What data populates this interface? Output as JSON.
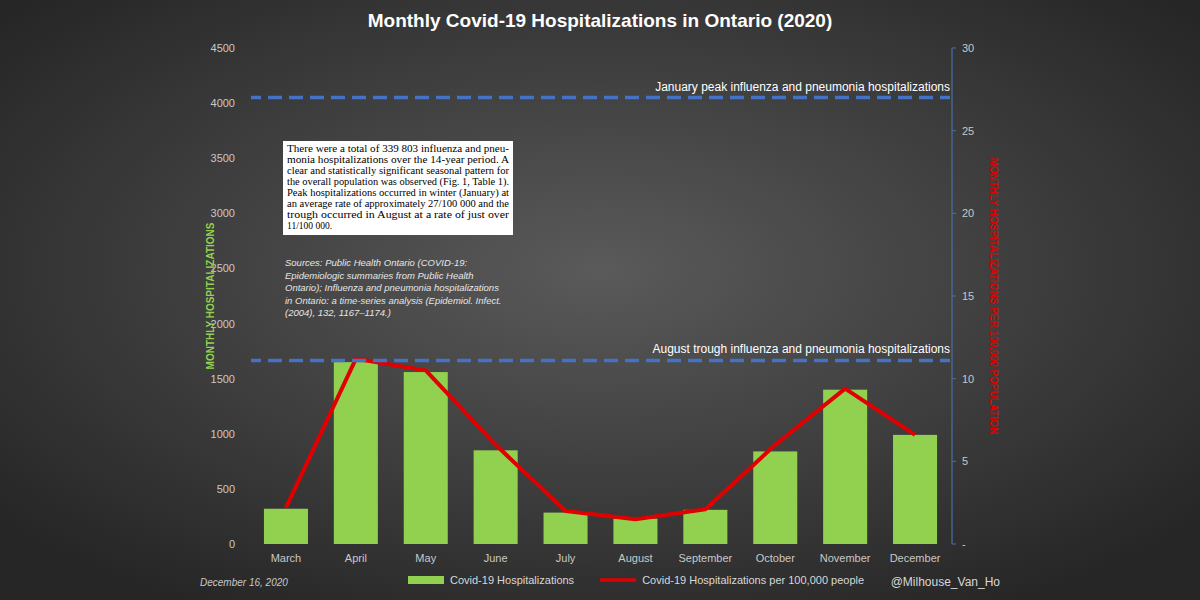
{
  "chart_data": {
    "type": "bar",
    "title": "Monthly Covid-19 Hospitalizations in Ontario (2020)",
    "categories": [
      "March",
      "April",
      "May",
      "June",
      "July",
      "August",
      "September",
      "October",
      "November",
      "December"
    ],
    "series": [
      {
        "name": "Covid-19 Hospitalizations",
        "type": "bar",
        "color": "#92d050",
        "values": [
          320,
          1650,
          1560,
          850,
          285,
          230,
          310,
          840,
          1400,
          990
        ]
      },
      {
        "name": "Covid-19 Hospitalizations per 100,000 people",
        "type": "line",
        "color": "#e00000",
        "axis": "y2",
        "values": [
          2.2,
          11.2,
          10.5,
          6.0,
          2.0,
          1.5,
          2.1,
          6.0,
          9.4,
          6.6
        ]
      }
    ],
    "ylabel": "MONTHLY HOSPITALIZATIONS",
    "y2label": "MONTHLY HOSPITALIZATIONS PER 100,000 POPULATION",
    "ylim": [
      0,
      4500
    ],
    "yticks": [
      0,
      500,
      1000,
      1500,
      2000,
      2500,
      3000,
      3500,
      4000,
      4500
    ],
    "y2lim": [
      0,
      30
    ],
    "y2ticks": [
      {
        "value": 0,
        "label": "-"
      },
      5,
      10,
      15,
      20,
      25,
      30
    ],
    "reference_lines": [
      {
        "label": "January peak influenza and pneumonia hospitalizations",
        "value": 27,
        "axis": "y2"
      },
      {
        "label": "August trough influenza and pneumonia hospitalizations",
        "value": 11.1,
        "axis": "y2"
      }
    ],
    "note_lines": [
      "There were a total of 339 803 influenza and pneu-",
      "monia hospitalizations over the 14-year period. A",
      "clear and statistically significant seasonal pattern for",
      "the overall population was observed (Fig. 1, Table 1).",
      "Peak hospitalizations occurred in winter (January) at",
      "an average rate of approximately 27/100 000 and the",
      "trough occurred in August at a rate of just over",
      "11/100 000."
    ],
    "source_lines": [
      "Sources: Public Health Ontario (COVID-19:",
      "Epidemiologic summaries from Public Health",
      "Ontario); Influenza and pneumonia hospitalizations",
      "in Ontario: a time-series analysis (Epidemiol. Infect.",
      "(2004), 132, 1167–1174.)"
    ],
    "date": "December 16, 2020",
    "credit": "@Milhouse_Van_Ho",
    "legend": "bottom",
    "grid": false
  }
}
